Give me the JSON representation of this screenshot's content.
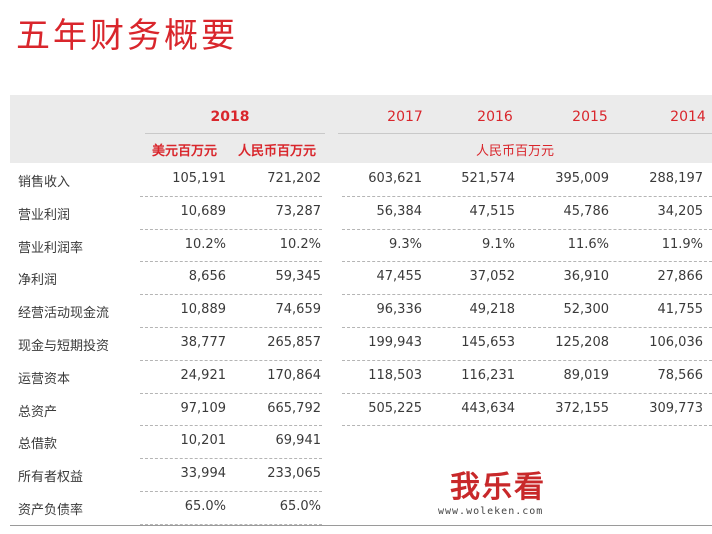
{
  "title": "五年财务概要",
  "years": [
    "2018",
    "2017",
    "2016",
    "2015",
    "2014"
  ],
  "units": {
    "usd": "美元百万元",
    "rmb": "人民币百万元",
    "rmb_span": "人民币百万元"
  },
  "rows": [
    {
      "label": "销售收入",
      "values": [
        "105,191",
        "721,202",
        "603,621",
        "521,574",
        "395,009",
        "288,197"
      ]
    },
    {
      "label": "营业利润",
      "values": [
        "10,689",
        "73,287",
        "56,384",
        "47,515",
        "45,786",
        "34,205"
      ]
    },
    {
      "label": "营业利润率",
      "values": [
        "10.2%",
        "10.2%",
        "9.3%",
        "9.1%",
        "11.6%",
        "11.9%"
      ]
    },
    {
      "label": "净利润",
      "values": [
        "8,656",
        "59,345",
        "47,455",
        "37,052",
        "36,910",
        "27,866"
      ]
    },
    {
      "label": "经营活动现金流",
      "values": [
        "10,889",
        "74,659",
        "96,336",
        "49,218",
        "52,300",
        "41,755"
      ]
    },
    {
      "label": "现金与短期投资",
      "values": [
        "38,777",
        "265,857",
        "199,943",
        "145,653",
        "125,208",
        "106,036"
      ]
    },
    {
      "label": "运营资本",
      "values": [
        "24,921",
        "170,864",
        "118,503",
        "116,231",
        "89,019",
        "78,566"
      ]
    },
    {
      "label": "总资产",
      "values": [
        "97,109",
        "665,792",
        "505,225",
        "443,634",
        "372,155",
        "309,773"
      ]
    },
    {
      "label": "总借款",
      "values": [
        "10,201",
        "69,941",
        "",
        "",
        "",
        ""
      ]
    },
    {
      "label": "所有者权益",
      "values": [
        "33,994",
        "233,065",
        "",
        "",
        "",
        ""
      ]
    },
    {
      "label": "资产负债率",
      "values": [
        "65.0%",
        "65.0%",
        "",
        "",
        "",
        ""
      ]
    }
  ],
  "watermark": {
    "text": "我乐看",
    "url": "www.woleken.com"
  }
}
